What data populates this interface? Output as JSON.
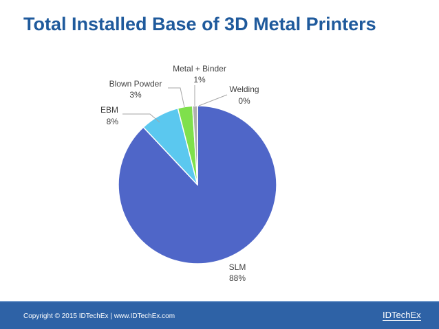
{
  "slide": {
    "title": "Total Installed Base of 3D Metal Printers",
    "footer": "Copyright © 2015 IDTechEx  |  www.IDTechEx.com",
    "logo_text": "IDTechEx"
  },
  "chart_data": {
    "type": "pie",
    "title": "Total Installed Base of 3D Metal Printers",
    "slices": [
      {
        "name": "SLM",
        "value": 88,
        "label": "88%",
        "color": "#4f66c8"
      },
      {
        "name": "EBM",
        "value": 8,
        "label": "8%",
        "color": "#5bc8ef"
      },
      {
        "name": "Blown Powder",
        "value": 3,
        "label": "3%",
        "color": "#7fe04c"
      },
      {
        "name": "Metal + Binder",
        "value": 1,
        "label": "1%",
        "color": "#b0b0b0"
      },
      {
        "name": "Welding",
        "value": 0,
        "label": "0%",
        "color": "#e6c85a"
      }
    ],
    "start": "12 o'clock",
    "direction": "clockwise"
  }
}
